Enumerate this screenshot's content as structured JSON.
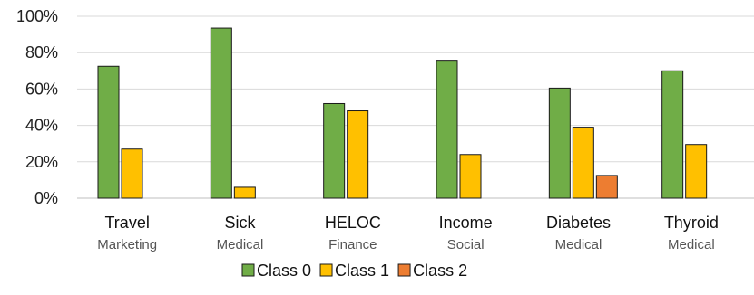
{
  "chart_data": {
    "type": "bar",
    "categories": [
      "Travel",
      "Sick",
      "HELOC",
      "Income",
      "Diabetes",
      "Thyroid"
    ],
    "subcategories": [
      "Marketing",
      "Medical",
      "Finance",
      "Social",
      "Medical",
      "Medical"
    ],
    "series": [
      {
        "name": "Class 0",
        "color": "#70ad47",
        "values": [
          72.5,
          93.5,
          52.0,
          75.8,
          60.5,
          70.0
        ]
      },
      {
        "name": "Class 1",
        "color": "#ffc000",
        "values": [
          27.0,
          6.0,
          48.0,
          24.0,
          39.0,
          29.5
        ]
      },
      {
        "name": "Class 2",
        "color": "#ed7d31",
        "values": [
          null,
          null,
          null,
          null,
          12.5,
          null
        ]
      }
    ],
    "ylim": [
      0,
      100
    ],
    "yticks": [
      "0%",
      "20%",
      "40%",
      "60%",
      "80%",
      "100%"
    ],
    "grid": true,
    "legend_position": "bottom",
    "title": "",
    "xlabel": "",
    "ylabel": ""
  }
}
